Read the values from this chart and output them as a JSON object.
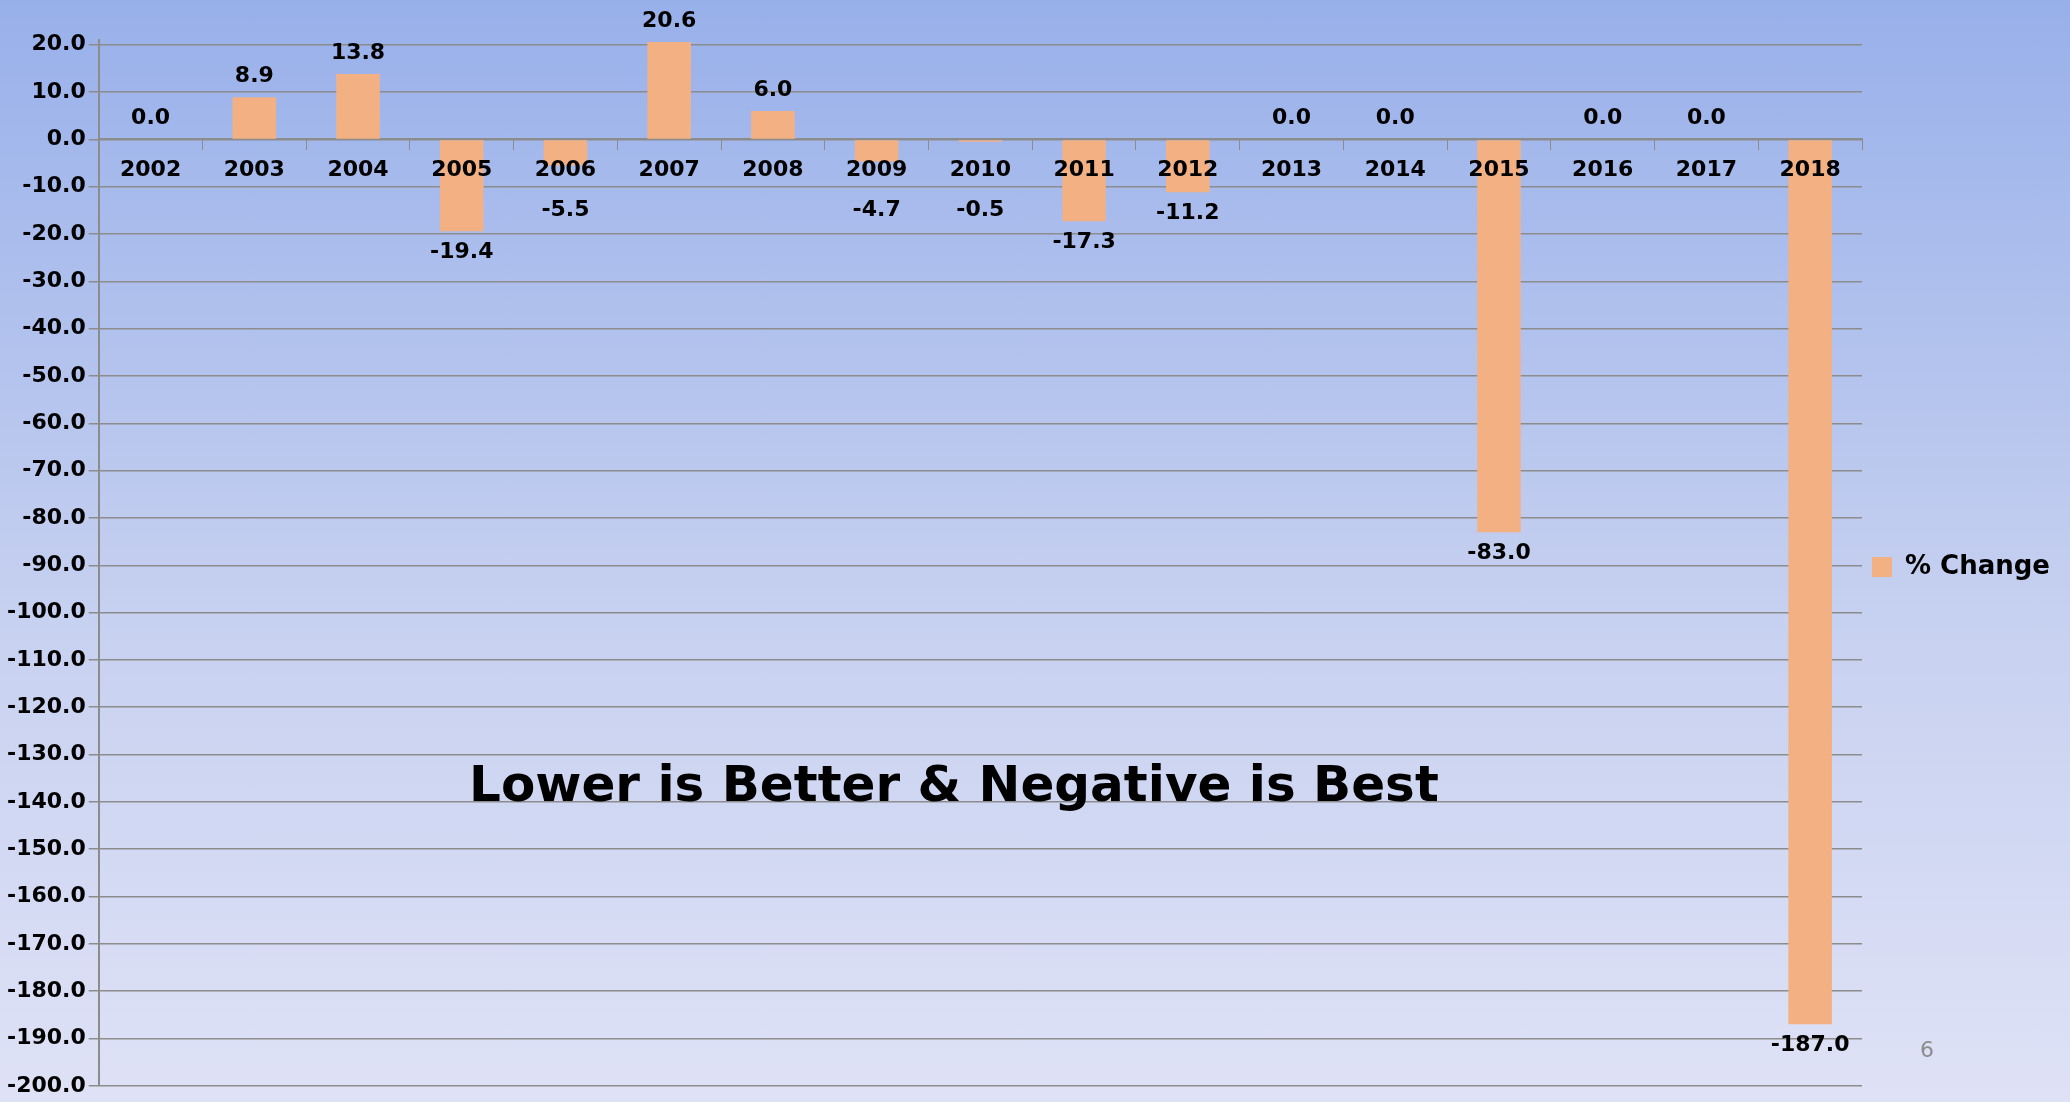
{
  "chart_data": {
    "type": "bar",
    "categories": [
      "2002",
      "2003",
      "2004",
      "2005",
      "2006",
      "2007",
      "2008",
      "2009",
      "2010",
      "2011",
      "2012",
      "2013",
      "2014",
      "2015",
      "2016",
      "2017",
      "2018"
    ],
    "series": [
      {
        "name": "% Change",
        "color": "#f3b183",
        "values": [
          0.0,
          8.9,
          13.8,
          -19.4,
          -5.5,
          20.6,
          6.0,
          -4.7,
          -0.5,
          -17.3,
          -11.2,
          0.0,
          0.0,
          -83.0,
          0.0,
          0.0,
          -187.0
        ],
        "value_labels": [
          "0.0",
          "8.9",
          "13.8",
          "-19.4",
          "-5.5",
          "20.6",
          "6.0",
          "-4.7",
          "-0.5",
          "-17.3",
          "-11.2",
          "0.0",
          "0.0",
          "-83.0",
          "0.0",
          "0.0",
          "-187.0"
        ]
      }
    ],
    "ylim": [
      -200,
      21
    ],
    "yticks": [
      {
        "value": 20,
        "label": "20.0"
      },
      {
        "value": 10,
        "label": "10.0"
      },
      {
        "value": 0,
        "label": "0.0"
      },
      {
        "value": -10,
        "label": "-10.0"
      },
      {
        "value": -20,
        "label": "-20.0"
      },
      {
        "value": -30,
        "label": "-30.0"
      },
      {
        "value": -40,
        "label": "-40.0"
      },
      {
        "value": -50,
        "label": "-50.0"
      },
      {
        "value": -60,
        "label": "-60.0"
      },
      {
        "value": -70,
        "label": "-70.0"
      },
      {
        "value": -80,
        "label": "-80.0"
      },
      {
        "value": -90,
        "label": "-90.0"
      },
      {
        "value": -100,
        "label": "-100.0"
      },
      {
        "value": -110,
        "label": "-110.0"
      },
      {
        "value": -120,
        "label": "-120.0"
      },
      {
        "value": -130,
        "label": "-130.0"
      },
      {
        "value": -140,
        "label": "-140.0"
      },
      {
        "value": -150,
        "label": "-150.0"
      },
      {
        "value": -160,
        "label": "-160.0"
      },
      {
        "value": -170,
        "label": "-170.0"
      },
      {
        "value": -180,
        "label": "-180.0"
      },
      {
        "value": -190,
        "label": "-190.0"
      },
      {
        "value": -200,
        "label": "-200.0"
      }
    ],
    "grid": "y",
    "legend": "right",
    "annotations": [
      "Lower is Better & Negative is Best",
      "6"
    ]
  }
}
